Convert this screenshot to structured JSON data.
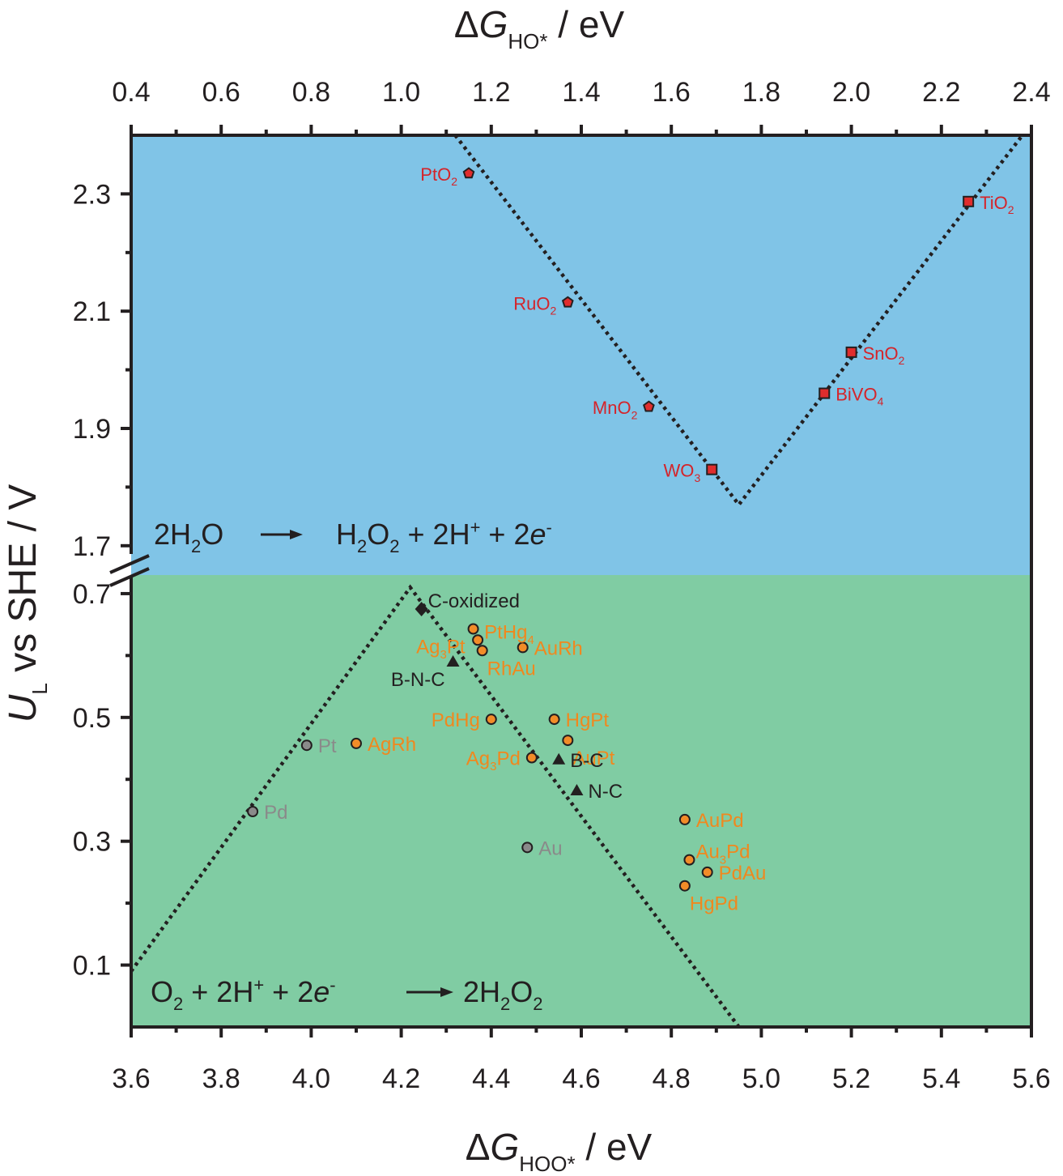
{
  "chart_data": [
    {
      "type": "scatter",
      "panel": "top",
      "x_axis": {
        "label_prefix": "ΔG",
        "label_sub": "HO*",
        "label_suffix": " / eV",
        "range": [
          0.4,
          2.4
        ],
        "ticks": [
          "0.4",
          "0.6",
          "0.8",
          "1.0",
          "1.2",
          "1.4",
          "1.6",
          "1.8",
          "2.0",
          "2.2",
          "2.4"
        ]
      },
      "y_axis": {
        "range": [
          1.65,
          2.4
        ],
        "ticks": [
          "1.7",
          "1.9",
          "2.1",
          "2.3"
        ]
      },
      "background": "#80c4e7",
      "colors": {
        "marker": "#e02d2d",
        "label": "#d4242a"
      },
      "reaction": {
        "lhs_parts": [
          [
            "2H",
            "normal"
          ],
          [
            "2",
            "sub"
          ],
          [
            "O",
            "normal"
          ]
        ],
        "rhs_parts": [
          [
            "H",
            "normal"
          ],
          [
            "2",
            "sub"
          ],
          [
            "O",
            "normal"
          ],
          [
            "2",
            "sub"
          ],
          [
            " + 2H",
            "normal"
          ],
          [
            "+",
            "sup"
          ],
          [
            " + 2",
            "normal"
          ],
          [
            "e",
            "italic"
          ],
          [
            "-",
            "sup"
          ]
        ]
      },
      "volcano_line": [
        [
          1.12,
          2.4
        ],
        [
          1.75,
          1.77
        ],
        [
          2.38,
          2.4
        ]
      ],
      "points": [
        {
          "label": "PtO2",
          "x": 1.15,
          "y": 2.335,
          "marker": "pentagon",
          "parts": [
            [
              "PtO",
              "normal"
            ],
            [
              "2",
              "sub"
            ]
          ],
          "side": "left"
        },
        {
          "label": "RuO2",
          "x": 1.37,
          "y": 2.115,
          "marker": "pentagon",
          "parts": [
            [
              "RuO",
              "normal"
            ],
            [
              "2",
              "sub"
            ]
          ],
          "side": "left"
        },
        {
          "label": "MnO2",
          "x": 1.55,
          "y": 1.937,
          "marker": "pentagon",
          "parts": [
            [
              "MnO",
              "normal"
            ],
            [
              "2",
              "sub"
            ]
          ],
          "side": "left"
        },
        {
          "label": "WO3",
          "x": 1.69,
          "y": 1.83,
          "marker": "square",
          "parts": [
            [
              "WO",
              "normal"
            ],
            [
              "3",
              "sub"
            ]
          ],
          "side": "left"
        },
        {
          "label": "BiVO4",
          "x": 1.94,
          "y": 1.96,
          "marker": "square",
          "parts": [
            [
              "BiVO",
              "normal"
            ],
            [
              "4",
              "sub"
            ]
          ],
          "side": "right"
        },
        {
          "label": "SnO2",
          "x": 2.0,
          "y": 2.03,
          "marker": "square",
          "parts": [
            [
              "SnO",
              "normal"
            ],
            [
              "2",
              "sub"
            ]
          ],
          "side": "right"
        },
        {
          "label": "TiO2",
          "x": 2.26,
          "y": 2.287,
          "marker": "square",
          "parts": [
            [
              "TiO",
              "normal"
            ],
            [
              "2",
              "sub"
            ]
          ],
          "side": "right"
        }
      ]
    },
    {
      "type": "scatter",
      "panel": "bottom",
      "x_axis": {
        "label_prefix": "ΔG",
        "label_sub": "HOO*",
        "label_suffix": " / eV",
        "range": [
          3.6,
          5.6
        ],
        "ticks": [
          "3.6",
          "3.8",
          "4.0",
          "4.2",
          "4.4",
          "4.6",
          "4.8",
          "5.0",
          "5.2",
          "5.4",
          "5.6"
        ]
      },
      "y_axis": {
        "range": [
          0.0,
          0.73
        ],
        "ticks": [
          "0.1",
          "0.3",
          "0.5",
          "0.7"
        ]
      },
      "y_label": {
        "italic": "U",
        "sub": "L",
        "rest": " vs SHE / V"
      },
      "background": "#80cca3",
      "colors": {
        "metal": "#f28c28",
        "metal_label": "#f0881e",
        "pure": "#8a8a8a",
        "pure_label": "#8a8a8a",
        "carbon": "#231f20"
      },
      "reaction": {
        "lhs_parts": [
          [
            "O",
            "normal"
          ],
          [
            "2",
            "sub"
          ],
          [
            " + 2H",
            "normal"
          ],
          [
            "+",
            "sup"
          ],
          [
            " + 2",
            "normal"
          ],
          [
            "e",
            "italic"
          ],
          [
            "-",
            "sup"
          ]
        ],
        "rhs_parts": [
          [
            "2H",
            "normal"
          ],
          [
            "2",
            "sub"
          ],
          [
            "O",
            "normal"
          ],
          [
            "2",
            "sub"
          ]
        ]
      },
      "volcano_line": [
        [
          3.6,
          0.09
        ],
        [
          4.22,
          0.71
        ],
        [
          4.95,
          -0.02
        ]
      ],
      "points": [
        {
          "label": "Pd",
          "x": 3.87,
          "y": 0.348,
          "class": "pure",
          "marker": "circle",
          "parts": [
            [
              "Pd",
              "normal"
            ]
          ],
          "side": "right"
        },
        {
          "label": "Pt",
          "x": 3.99,
          "y": 0.455,
          "class": "pure",
          "marker": "circle",
          "parts": [
            [
              "Pt",
              "normal"
            ]
          ],
          "side": "right"
        },
        {
          "label": "Au",
          "x": 4.48,
          "y": 0.29,
          "class": "pure",
          "marker": "circle",
          "parts": [
            [
              "Au",
              "normal"
            ]
          ],
          "side": "right"
        },
        {
          "label": "AgRh",
          "x": 4.1,
          "y": 0.458,
          "class": "metal",
          "marker": "circle",
          "parts": [
            [
              "AgRh",
              "normal"
            ]
          ],
          "side": "right"
        },
        {
          "label": "PdHg",
          "x": 4.4,
          "y": 0.497,
          "class": "metal",
          "marker": "circle",
          "parts": [
            [
              "PdHg",
              "normal"
            ]
          ],
          "side": "left"
        },
        {
          "label": "Ag3Pd",
          "x": 4.49,
          "y": 0.435,
          "class": "metal",
          "marker": "circle",
          "parts": [
            [
              "Ag",
              "normal"
            ],
            [
              "3",
              "sub"
            ],
            [
              "Pd",
              "normal"
            ]
          ],
          "side": "left"
        },
        {
          "label": "HgPt",
          "x": 4.54,
          "y": 0.497,
          "class": "metal",
          "marker": "circle",
          "parts": [
            [
              "HgPt",
              "normal"
            ]
          ],
          "side": "right"
        },
        {
          "label": "AuPt",
          "x": 4.57,
          "y": 0.463,
          "class": "metal",
          "marker": "circle",
          "parts": [
            [
              "AuPt",
              "normal"
            ]
          ],
          "side": "right-low"
        },
        {
          "label": "Ag3Pt",
          "x": 4.36,
          "y": 0.643,
          "class": "metal",
          "marker": "circle",
          "parts": [
            [
              "Ag",
              "normal"
            ],
            [
              "3",
              "sub"
            ],
            [
              "Pt",
              "normal"
            ]
          ],
          "side": "left-low"
        },
        {
          "label": "PtHg4",
          "x": 4.37,
          "y": 0.625,
          "class": "metal",
          "marker": "circle",
          "parts": [
            [
              "PtHg",
              "normal"
            ],
            [
              "4",
              "sub"
            ]
          ],
          "side": "right-high"
        },
        {
          "label": "RhAu",
          "x": 4.38,
          "y": 0.608,
          "class": "metal",
          "marker": "circle",
          "parts": [
            [
              "RhAu",
              "normal"
            ]
          ],
          "side": "right-low"
        },
        {
          "label": "AuRh",
          "x": 4.47,
          "y": 0.613,
          "class": "metal",
          "marker": "circle",
          "parts": [
            [
              "AuRh",
              "normal"
            ]
          ],
          "side": "right"
        },
        {
          "label": "AuPd",
          "x": 4.83,
          "y": 0.335,
          "class": "metal",
          "marker": "circle",
          "parts": [
            [
              "AuPd",
              "normal"
            ]
          ],
          "side": "right"
        },
        {
          "label": "Au3Pd",
          "x": 4.84,
          "y": 0.27,
          "class": "metal",
          "marker": "circle",
          "parts": [
            [
              "Au",
              "normal"
            ],
            [
              "3",
              "sub"
            ],
            [
              "Pd",
              "normal"
            ]
          ],
          "side": "right-high"
        },
        {
          "label": "PdAu",
          "x": 4.88,
          "y": 0.25,
          "class": "metal",
          "marker": "circle",
          "parts": [
            [
              "PdAu",
              "normal"
            ]
          ],
          "side": "right"
        },
        {
          "label": "HgPd",
          "x": 4.83,
          "y": 0.228,
          "class": "metal",
          "marker": "circle",
          "parts": [
            [
              "HgPd",
              "normal"
            ]
          ],
          "side": "right-low"
        },
        {
          "label": "C-oxidized",
          "x": 4.245,
          "y": 0.675,
          "class": "carbon",
          "marker": "diamond",
          "parts": [
            [
              "C-oxidized",
              "normal"
            ]
          ],
          "side": "right-high"
        },
        {
          "label": "B-N-C",
          "x": 4.315,
          "y": 0.59,
          "class": "carbon",
          "marker": "triangle",
          "parts": [
            [
              "B-N-C",
              "normal"
            ]
          ],
          "side": "left-low"
        },
        {
          "label": "B-C",
          "x": 4.55,
          "y": 0.432,
          "class": "carbon",
          "marker": "triangle",
          "parts": [
            [
              "B-C",
              "normal"
            ]
          ],
          "side": "right"
        },
        {
          "label": "N-C",
          "x": 4.59,
          "y": 0.382,
          "class": "carbon",
          "marker": "triangle",
          "parts": [
            [
              "N-C",
              "normal"
            ]
          ],
          "side": "right"
        }
      ]
    }
  ]
}
